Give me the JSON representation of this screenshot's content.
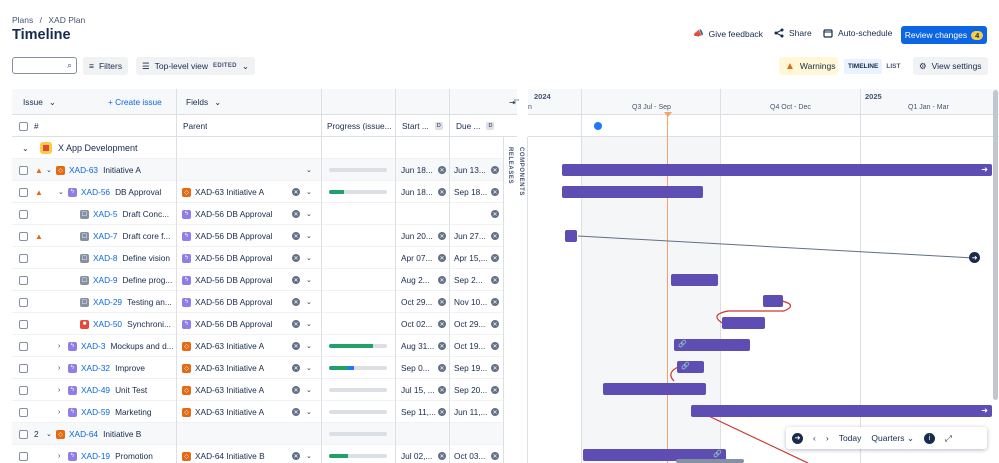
{
  "breadcrumb": [
    "Plans",
    "/",
    "XAD Plan"
  ],
  "page_title": "Timeline",
  "header_actions": {
    "feedback": "Give feedback",
    "share": "Share",
    "autoschedule": "Auto-schedule",
    "review": "Review changes",
    "review_count": "4"
  },
  "toolbar": {
    "search_placeholder": "",
    "filters": "Filters",
    "view": "Top-level view",
    "edited": "EDITED",
    "warnings": "Warnings",
    "timeline": "TIMELINE",
    "list": "LIST",
    "view_settings": "View settings"
  },
  "grid": {
    "issue_header": "Issue",
    "create_issue": "+ Create issue",
    "fields_header": "Fields",
    "columns": {
      "hash": "#",
      "parent": "Parent",
      "progress": "Progress (issue...",
      "start": "Start ...",
      "due": "Due ...",
      "d": "D"
    },
    "group_label": "X App Development"
  },
  "rows": [
    {
      "num": "",
      "key": "XAD-63",
      "title": "Initiative A",
      "type": "init",
      "warn": true,
      "indent": 0,
      "expand": "v",
      "parent": "",
      "parent_type": "",
      "progress": [
        0,
        0
      ],
      "start": "Jun 18...",
      "due": "Jun 13...",
      "clear": false,
      "dd": true
    },
    {
      "num": "",
      "key": "XAD-56",
      "title": "DB Approval",
      "type": "epic",
      "warn": true,
      "indent": 1,
      "expand": "v",
      "parent": "XAD-63 Initiative A",
      "parent_type": "init",
      "progress": [
        0.25,
        0
      ],
      "start": "Jun 18...",
      "due": "Sep 18...",
      "clear": true,
      "dd": true
    },
    {
      "num": "",
      "key": "XAD-5",
      "title": "Draft Conc...",
      "type": "task",
      "warn": false,
      "indent": 2,
      "expand": "",
      "parent": "XAD-56 DB Approval",
      "parent_type": "epic",
      "progress": null,
      "start": "",
      "due": "",
      "clear": true,
      "dd": false
    },
    {
      "num": "",
      "key": "XAD-7",
      "title": "Draft core f...",
      "type": "task",
      "warn": true,
      "indent": 2,
      "expand": "",
      "parent": "XAD-56 DB Approval",
      "parent_type": "epic",
      "progress": null,
      "start": "Jun 20...",
      "due": "Jun 27...",
      "clear": true,
      "dd": false
    },
    {
      "num": "",
      "key": "XAD-8",
      "title": "Define vision",
      "type": "task",
      "warn": false,
      "indent": 2,
      "expand": "",
      "parent": "XAD-56 DB Approval",
      "parent_type": "epic",
      "progress": null,
      "start": "Apr 07...",
      "due": "Apr 15,...",
      "clear": true,
      "dd": false
    },
    {
      "num": "",
      "key": "XAD-9",
      "title": "Define prog...",
      "type": "task",
      "warn": false,
      "indent": 2,
      "expand": "",
      "parent": "XAD-56 DB Approval",
      "parent_type": "epic",
      "progress": null,
      "start": "Aug 2...",
      "due": "Sep 2...",
      "clear": true,
      "dd": false
    },
    {
      "num": "",
      "key": "XAD-29",
      "title": "Testing an...",
      "type": "task",
      "warn": false,
      "indent": 2,
      "expand": "",
      "parent": "XAD-56 DB Approval",
      "parent_type": "epic",
      "progress": null,
      "start": "Oct 29...",
      "due": "Nov 10...",
      "clear": true,
      "dd": false
    },
    {
      "num": "",
      "key": "XAD-50",
      "title": "Synchroni...",
      "type": "bug",
      "warn": false,
      "indent": 2,
      "expand": "",
      "parent": "XAD-56 DB Approval",
      "parent_type": "epic",
      "progress": null,
      "start": "Oct 02...",
      "due": "Oct 29...",
      "clear": true,
      "dd": false
    },
    {
      "num": "",
      "key": "XAD-3",
      "title": "Mockups and d...",
      "type": "epic",
      "warn": false,
      "indent": 1,
      "expand": ">",
      "parent": "XAD-63 Initiative A",
      "parent_type": "init",
      "progress": [
        0.75,
        0
      ],
      "start": "Aug 31...",
      "due": "Oct 19...",
      "clear": true,
      "dd": true
    },
    {
      "num": "",
      "key": "XAD-32",
      "title": "Improve",
      "type": "epic",
      "warn": false,
      "indent": 1,
      "expand": ">",
      "parent": "XAD-63 Initiative A",
      "parent_type": "init",
      "progress": [
        0.33,
        0.1
      ],
      "start": "Sep 0...",
      "due": "Sep 19...",
      "clear": true,
      "dd": true
    },
    {
      "num": "",
      "key": "XAD-49",
      "title": "Unit Test",
      "type": "epic",
      "warn": false,
      "indent": 1,
      "expand": ">",
      "parent": "XAD-63 Initiative A",
      "parent_type": "init",
      "progress": [
        0,
        0
      ],
      "start": "Jul 15, ...",
      "due": "Sep 20...",
      "clear": true,
      "dd": true
    },
    {
      "num": "",
      "key": "XAD-59",
      "title": "Marketing",
      "type": "epic",
      "warn": false,
      "indent": 1,
      "expand": ">",
      "parent": "XAD-63 Initiative A",
      "parent_type": "init",
      "progress": [
        0,
        0
      ],
      "start": "Sep 11,...",
      "due": "Jun 11,...",
      "clear": true,
      "dd": true
    },
    {
      "num": "2",
      "key": "XAD-64",
      "title": "Initiative B",
      "type": "init",
      "warn": false,
      "indent": 0,
      "expand": "v",
      "parent": "",
      "parent_type": "",
      "progress": [
        0,
        0
      ],
      "start": "",
      "due": "",
      "clear": false,
      "dd": false
    },
    {
      "num": "",
      "key": "XAD-19",
      "title": "Promotion",
      "type": "epic",
      "warn": false,
      "indent": 1,
      "expand": ">",
      "parent": "XAD-64 Initiative B",
      "parent_type": "init",
      "progress": [
        0.33,
        0
      ],
      "start": "Jul 02,...",
      "due": "Oct 03...",
      "clear": true,
      "dd": true
    }
  ],
  "timeline": {
    "years": [
      "2024",
      "2025"
    ],
    "quarters": [
      "Q3 Jul - Sep",
      "Q4 Oct - Dec",
      "Q1 Jan - Mar"
    ],
    "quarter_prefix": "n",
    "releases": "RELEASES",
    "components": "COMPONENTS"
  },
  "controls": {
    "today": "Today",
    "scale": "Quarters"
  }
}
